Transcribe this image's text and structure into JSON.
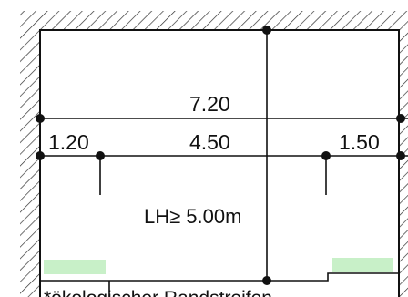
{
  "dimensions": {
    "total_width": "7.20",
    "left_strip": "1.20",
    "middle_span": "4.50",
    "right_strip": "1.50"
  },
  "clearance": {
    "label": "LH≥ 5.00m"
  },
  "caption": {
    "text": "*ökologischer Randstreifen"
  },
  "colors": {
    "green_strip": "#c8f0c8",
    "wall_hatch": "#333333",
    "line": "#111111"
  }
}
